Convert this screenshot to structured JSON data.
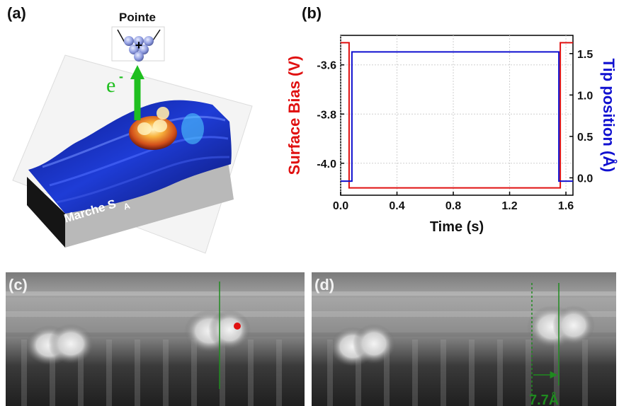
{
  "figure": {
    "panel_a": {
      "label": "(a)",
      "tip_label": "Pointe",
      "tip_symbol": "+",
      "electron_label": "e",
      "electron_superscript": "-",
      "step_label": "Marche S",
      "step_subscript": "A",
      "colors": {
        "electron_arrow": "#1fbf1f",
        "surface": "#1e3cd6",
        "molecule": "#f08a1e"
      }
    },
    "panel_b": {
      "label": "(b)"
    },
    "panel_c": {
      "label": "(c)",
      "colors": {
        "marker_line": "#1f8a1f",
        "tip_dot": "#e01010"
      }
    },
    "panel_d": {
      "label": "(d)",
      "distance_label": "7.7Å",
      "colors": {
        "marker_line": "#1f8a1f"
      }
    }
  },
  "chart_data": {
    "type": "line",
    "xlabel": "Time (s)",
    "ylabel": "Surface Bias (V)",
    "y2label": "Tip position (Å)",
    "xlim": [
      0,
      1.65
    ],
    "ylim": [
      -4.13,
      -3.48
    ],
    "y2lim": [
      -0.21,
      1.72
    ],
    "xticks": [
      "0.0",
      "0.4",
      "0.8",
      "1.2",
      "1.6"
    ],
    "yticks": [
      "-3.6",
      "-3.8",
      "-4.0"
    ],
    "y2ticks": [
      "0.0",
      "0.5",
      "1.0",
      "1.5"
    ],
    "grid": true,
    "series": [
      {
        "axis": "left",
        "color": "#e01010",
        "x": [
          0,
          0.06,
          0.06,
          1.56,
          1.56,
          1.65
        ],
        "y": [
          -3.51,
          -3.51,
          -4.1,
          -4.1,
          -3.51,
          -3.51
        ]
      },
      {
        "axis": "right",
        "color": "#1010d0",
        "x": [
          0,
          0.08,
          0.08,
          1.55,
          1.55,
          1.65
        ],
        "y": [
          -0.04,
          -0.04,
          1.52,
          1.52,
          -0.04,
          -0.04
        ]
      }
    ],
    "xtick_values": [
      0,
      0.4,
      0.8,
      1.2,
      1.6
    ],
    "ytick_values": [
      -3.6,
      -3.8,
      -4.0
    ],
    "y2tick_values": [
      0,
      0.5,
      1.0,
      1.5
    ]
  }
}
